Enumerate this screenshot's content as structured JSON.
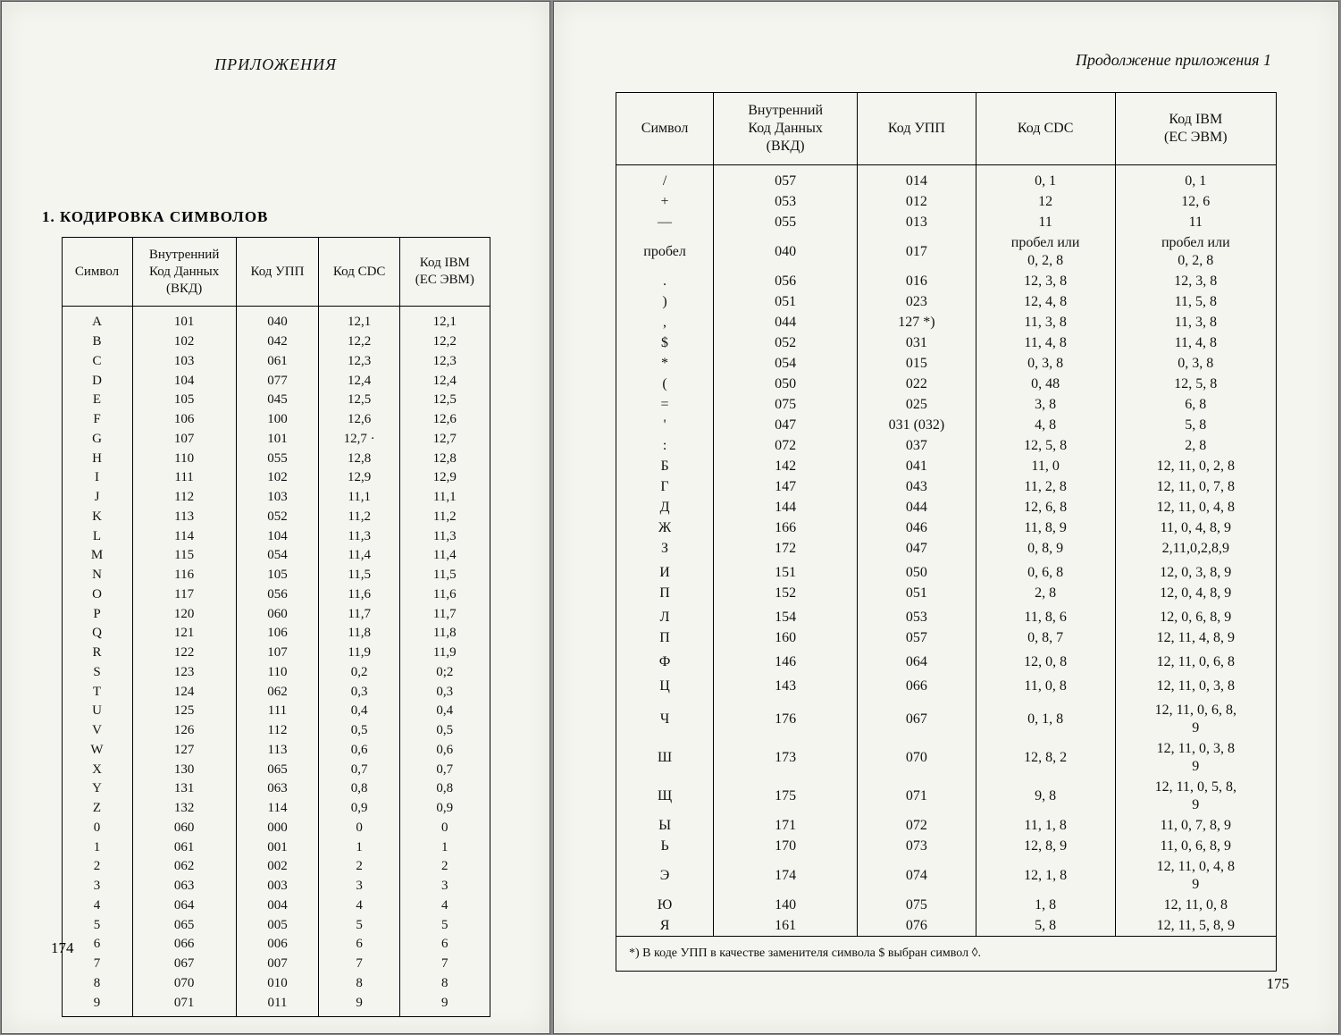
{
  "leftPage": {
    "header": "ПРИЛОЖЕНИЯ",
    "sectionTitle": "1. КОДИРОВКА СИМВОЛОВ",
    "pageNumber": "174",
    "table": {
      "columns": [
        "Символ",
        "Внутренний\nКод Данных\n(ВКД)",
        "Код УПП",
        "Код CDC",
        "Код IBM\n(ЕС ЭВМ)"
      ],
      "rows": [
        [
          "A",
          "101",
          "040",
          "12,1",
          "12,1"
        ],
        [
          "B",
          "102",
          "042",
          "12,2",
          "12,2"
        ],
        [
          "C",
          "103",
          "061",
          "12,3",
          "12,3"
        ],
        [
          "D",
          "104",
          "077",
          "12,4",
          "12,4"
        ],
        [
          "E",
          "105",
          "045",
          "12,5",
          "12,5"
        ],
        [
          "F",
          "106",
          "100",
          "12,6",
          "12,6"
        ],
        [
          "G",
          "107",
          "101",
          "12,7 ·",
          "12,7"
        ],
        [
          "H",
          "110",
          "055",
          "12,8",
          "12,8"
        ],
        [
          "I",
          "111",
          "102",
          "12,9",
          "12,9"
        ],
        [
          "J",
          "112",
          "103",
          "11,1",
          "11,1"
        ],
        [
          "K",
          "113",
          "052",
          "11,2",
          "11,2"
        ],
        [
          "L",
          "114",
          "104",
          "11,3",
          "11,3"
        ],
        [
          "M",
          "115",
          "054",
          "11,4",
          "11,4"
        ],
        [
          "N",
          "116",
          "105",
          "11,5",
          "11,5"
        ],
        [
          "O",
          "117",
          "056",
          "11,6",
          "11,6"
        ],
        [
          "P",
          "120",
          "060",
          "11,7",
          "11,7"
        ],
        [
          "Q",
          "121",
          "106",
          "11,8",
          "11,8"
        ],
        [
          "R",
          "122",
          "107",
          "11,9",
          "11,9"
        ],
        [
          "S",
          "123",
          "110",
          "0,2",
          "0;2"
        ],
        [
          "T",
          "124",
          "062",
          "0,3",
          "0,3"
        ],
        [
          "U",
          "125",
          "111",
          "0,4",
          "0,4"
        ],
        [
          "V",
          "126",
          "112",
          "0,5",
          "0,5"
        ],
        [
          "W",
          "127",
          "113",
          "0,6",
          "0,6"
        ],
        [
          "X",
          "130",
          "065",
          "0,7",
          "0,7"
        ],
        [
          "Y",
          "131",
          "063",
          "0,8",
          "0,8"
        ],
        [
          "Z",
          "132",
          "114",
          "0,9",
          "0,9"
        ],
        [
          "0",
          "060",
          "000",
          "0",
          "0"
        ],
        [
          "1",
          "061",
          "001",
          "1",
          "1"
        ],
        [
          "2",
          "062",
          "002",
          "2",
          "2"
        ],
        [
          "3",
          "063",
          "003",
          "3",
          "3"
        ],
        [
          "4",
          "064",
          "004",
          "4",
          "4"
        ],
        [
          "5",
          "065",
          "005",
          "5",
          "5"
        ],
        [
          "6",
          "066",
          "006",
          "6",
          "6"
        ],
        [
          "7",
          "067",
          "007",
          "7",
          "7"
        ],
        [
          "8",
          "070",
          "010",
          "8",
          "8"
        ],
        [
          "9",
          "071",
          "011",
          "9",
          "9"
        ]
      ]
    }
  },
  "rightPage": {
    "header": "Продолжение приложения 1",
    "pageNumber": "175",
    "table": {
      "columns": [
        "Символ",
        "Внутренний\nКод Данных\n(ВКД)",
        "Код УПП",
        "Код CDC",
        "Код IBM\n(ЕС ЭВМ)"
      ],
      "rows": [
        [
          "/",
          "057",
          "014",
          "0, 1",
          "0, 1"
        ],
        [
          "+",
          "053",
          "012",
          "12",
          "12, 6"
        ],
        [
          "—",
          "055",
          "013",
          "11",
          "11"
        ],
        [
          "пробел",
          "040",
          "017",
          "пробел или\n0, 2, 8",
          "пробел или\n0, 2, 8"
        ],
        [
          ".",
          "056",
          "016",
          "12, 3, 8",
          "12, 3, 8"
        ],
        [
          ")",
          "051",
          "023",
          "12, 4, 8",
          "11, 5, 8"
        ],
        [
          ",",
          "044",
          "127 *)",
          "11, 3, 8",
          "11, 3, 8"
        ],
        [
          "$",
          "052",
          "031",
          "11, 4, 8",
          "11, 4, 8"
        ],
        [
          "*",
          "054",
          "015",
          "0, 3, 8",
          "0, 3, 8"
        ],
        [
          "(",
          "050",
          "022",
          "0, 48",
          "12, 5, 8"
        ],
        [
          "=",
          "075",
          "025",
          "3, 8",
          "6, 8"
        ],
        [
          "'",
          "047",
          "031 (032)",
          "4, 8",
          "5, 8"
        ],
        [
          ":",
          "072",
          "037",
          "12, 5, 8",
          "2, 8"
        ],
        [
          "Б",
          "142",
          "041",
          "11, 0",
          "12, 11, 0, 2, 8"
        ],
        [
          "Г",
          "147",
          "043",
          "11, 2, 8",
          "12, 11, 0, 7, 8"
        ],
        [
          "Д",
          "144",
          "044",
          "12, 6, 8",
          "12, 11, 0, 4, 8"
        ],
        [
          "Ж",
          "166",
          "046",
          "11, 8, 9",
          "11, 0, 4, 8, 9"
        ],
        [
          "З",
          "172",
          "047",
          "0, 8, 9",
          "2,11,0,2,8,9"
        ],
        [
          "",
          "",
          "",
          "",
          ""
        ],
        [
          "И",
          "151",
          "050",
          "0, 6, 8",
          "12, 0, 3, 8, 9"
        ],
        [
          "П",
          "152",
          "051",
          "2, 8",
          "12, 0, 4, 8, 9"
        ],
        [
          "",
          "",
          "",
          "",
          ""
        ],
        [
          "Л",
          "154",
          "053",
          "11, 8, 6",
          "12, 0, 6, 8, 9"
        ],
        [
          "П",
          "160",
          "057",
          "0, 8, 7",
          "12, 11, 4, 8, 9"
        ],
        [
          "",
          "",
          "",
          "",
          ""
        ],
        [
          "Ф",
          "146",
          "064",
          "12, 0, 8",
          "12, 11, 0, 6, 8"
        ],
        [
          "",
          "",
          "",
          "",
          ""
        ],
        [
          "Ц",
          "143",
          "066",
          "11, 0, 8",
          "12, 11, 0, 3, 8"
        ],
        [
          "",
          "",
          "",
          "",
          ""
        ],
        [
          "Ч",
          "176",
          "067",
          "0, 1, 8",
          "12, 11, 0, 6, 8,\n9"
        ],
        [
          "Ш",
          "173",
          "070",
          "12, 8, 2",
          "12, 11, 0, 3, 8\n9"
        ],
        [
          "Щ",
          "175",
          "071",
          "9, 8",
          "12, 11, 0, 5, 8,\n9"
        ],
        [
          "Ы",
          "171",
          "072",
          "11, 1, 8",
          "11, 0, 7, 8, 9"
        ],
        [
          "Ь",
          "170",
          "073",
          "12, 8, 9",
          "11, 0, 6, 8, 9"
        ],
        [
          "Э",
          "174",
          "074",
          "12, 1, 8",
          "12, 11, 0, 4, 8\n9"
        ],
        [
          "Ю",
          "140",
          "075",
          "1, 8",
          "12, 11, 0, 8"
        ],
        [
          "Я",
          "161",
          "076",
          "5, 8",
          "12, 11, 5, 8, 9"
        ]
      ],
      "footnote": "*) В коде УПП в качестве заменителя символа $ выбран символ ◊."
    }
  }
}
